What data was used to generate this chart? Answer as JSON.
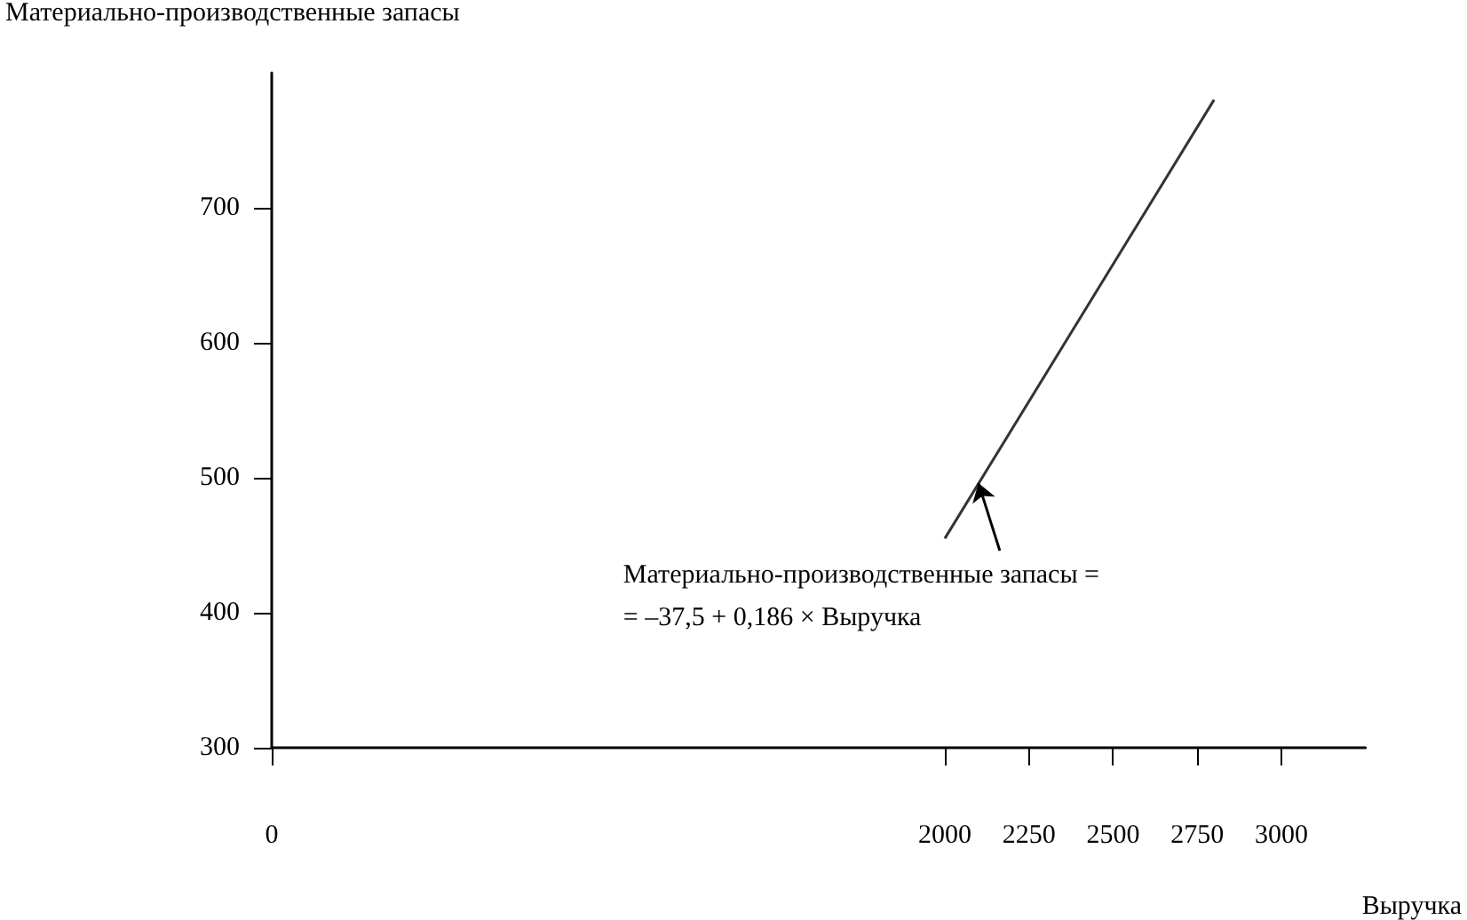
{
  "chart_data": {
    "type": "line",
    "xlabel": "Выручка",
    "ylabel": "Материально-производственные запасы",
    "x": [
      2000,
      2800
    ],
    "values": [
      455,
      780
    ],
    "color": "#333333",
    "marker": "none",
    "xlim": [
      0,
      3250
    ],
    "xticks": [
      0,
      2000,
      2250,
      2500,
      2750,
      3000
    ],
    "ylim": [
      300,
      800
    ],
    "yticks": [
      300,
      400,
      500,
      600,
      700
    ],
    "annotations": [
      {
        "text": "Материально-производственные запасы =\n= –37,5 + 0,186 × Выручка",
        "x": 2100,
        "y": 496
      }
    ]
  }
}
